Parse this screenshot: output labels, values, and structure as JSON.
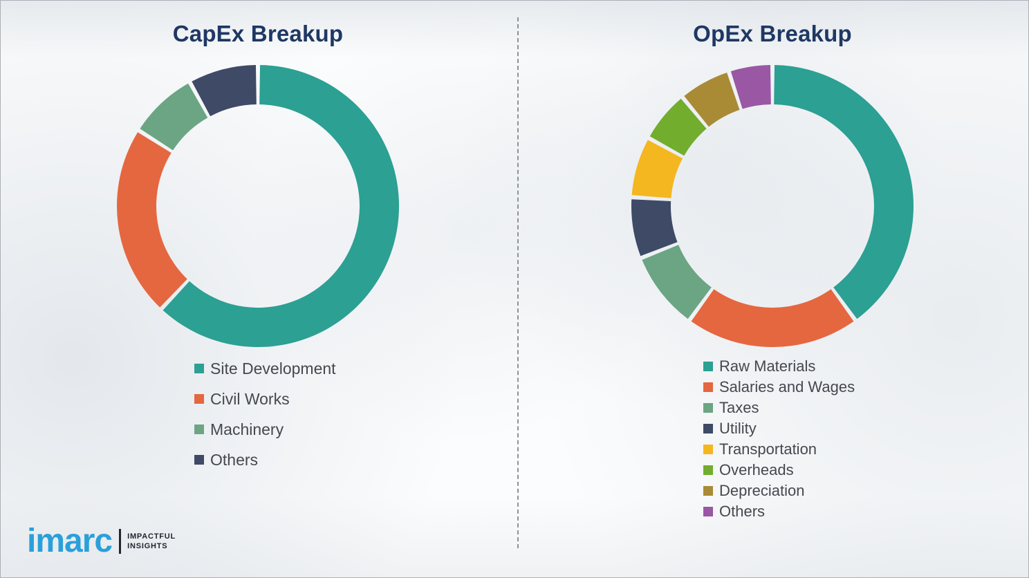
{
  "chart_data": [
    {
      "type": "pie",
      "variant": "donut",
      "title": "CapEx Breakup",
      "legend_position": "bottom-left",
      "values_unit": "percent (estimated from arc angles; no data labels shown)",
      "segments": [
        {
          "label": "Site Development",
          "value": 62,
          "color": "#2ba093"
        },
        {
          "label": "Civil Works",
          "value": 22,
          "color": "#e5673f"
        },
        {
          "label": "Machinery",
          "value": 8,
          "color": "#6ba583"
        },
        {
          "label": "Others",
          "value": 8,
          "color": "#3f4a66"
        }
      ]
    },
    {
      "type": "pie",
      "variant": "donut",
      "title": "OpEx Breakup",
      "legend_position": "bottom-left",
      "values_unit": "percent (estimated from arc angles; no data labels shown)",
      "segments": [
        {
          "label": "Raw Materials",
          "value": 40,
          "color": "#2ba093"
        },
        {
          "label": "Salaries and Wages",
          "value": 20,
          "color": "#e5673f"
        },
        {
          "label": "Taxes",
          "value": 9,
          "color": "#6ba583"
        },
        {
          "label": "Utility",
          "value": 7,
          "color": "#3f4a66"
        },
        {
          "label": "Transportation",
          "value": 7,
          "color": "#f4b71f"
        },
        {
          "label": "Overheads",
          "value": 6,
          "color": "#72ad2e"
        },
        {
          "label": "Depreciation",
          "value": 6,
          "color": "#a98b35"
        },
        {
          "label": "Others",
          "value": 5,
          "color": "#9a57a3"
        }
      ]
    }
  ],
  "logo": {
    "name": "imarc",
    "tagline_line1": "IMPACTFUL",
    "tagline_line2": "INSIGHTS"
  },
  "style": {
    "title_color": "#1f3864",
    "legend_text_color": "#47474f",
    "logo_blue": "#2aa0da",
    "divider_style": "vertical-dashed"
  }
}
